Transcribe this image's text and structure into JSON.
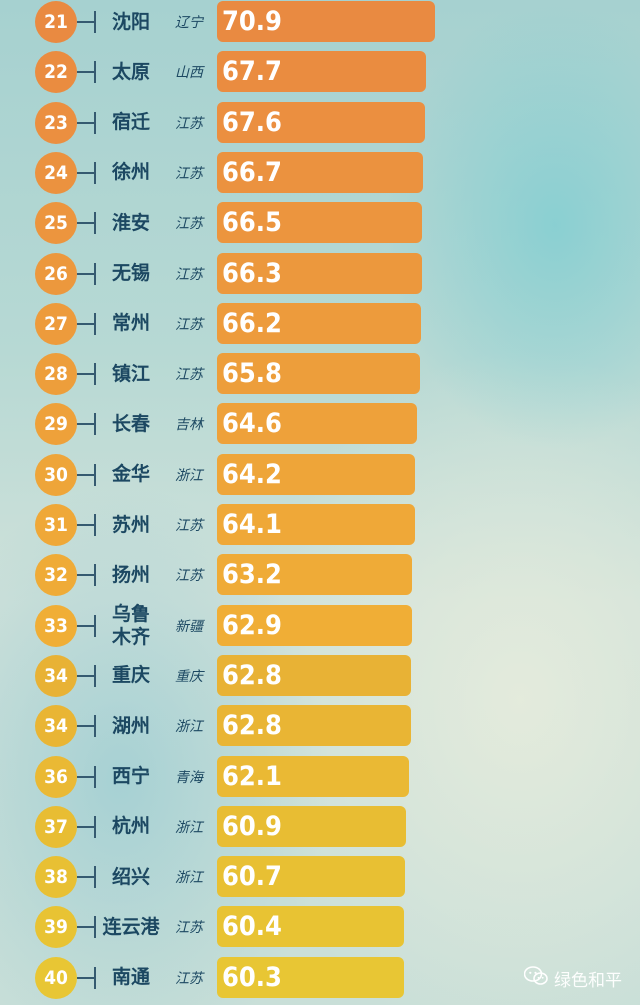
{
  "chart_data": {
    "type": "bar",
    "orientation": "horizontal",
    "rows": [
      {
        "rank": "21",
        "city": "沈阳",
        "province": "辽宁",
        "value": 70.9,
        "label": "70.9",
        "color": "#e98a41"
      },
      {
        "rank": "22",
        "city": "太原",
        "province": "山西",
        "value": 67.7,
        "label": "67.7",
        "color": "#ea8c40"
      },
      {
        "rank": "23",
        "city": "宿迁",
        "province": "江苏",
        "value": 67.6,
        "label": "67.6",
        "color": "#eb8f40"
      },
      {
        "rank": "24",
        "city": "徐州",
        "province": "江苏",
        "value": 66.7,
        "label": "66.7",
        "color": "#eb923f"
      },
      {
        "rank": "25",
        "city": "淮安",
        "province": "江苏",
        "value": 66.5,
        "label": "66.5",
        "color": "#ec953e"
      },
      {
        "rank": "26",
        "city": "无锡",
        "province": "江苏",
        "value": 66.3,
        "label": "66.3",
        "color": "#ec983d"
      },
      {
        "rank": "27",
        "city": "常州",
        "province": "江苏",
        "value": 66.2,
        "label": "66.2",
        "color": "#ed9b3c"
      },
      {
        "rank": "28",
        "city": "镇江",
        "province": "江苏",
        "value": 65.8,
        "label": "65.8",
        "color": "#ed9e3b"
      },
      {
        "rank": "29",
        "city": "长春",
        "province": "吉林",
        "value": 64.6,
        "label": "64.6",
        "color": "#eea13a"
      },
      {
        "rank": "30",
        "city": "金华",
        "province": "浙江",
        "value": 64.2,
        "label": "64.2",
        "color": "#eea539"
      },
      {
        "rank": "31",
        "city": "苏州",
        "province": "江苏",
        "value": 64.1,
        "label": "64.1",
        "color": "#efa838"
      },
      {
        "rank": "32",
        "city": "扬州",
        "province": "江苏",
        "value": 63.2,
        "label": "63.2",
        "color": "#efab37"
      },
      {
        "rank": "33",
        "city": "乌鲁木齐",
        "city_lines": [
          "乌鲁",
          "木齐"
        ],
        "province": "新疆",
        "value": 62.9,
        "label": "62.9",
        "color": "#f0ae36"
      },
      {
        "rank": "34",
        "city": "重庆",
        "province": "重庆",
        "value": 62.8,
        "label": "62.8",
        "color": "#e8b235"
      },
      {
        "rank": "34",
        "city": "湖州",
        "province": "浙江",
        "value": 62.8,
        "label": "62.8",
        "color": "#e9b534"
      },
      {
        "rank": "36",
        "city": "西宁",
        "province": "青海",
        "value": 62.1,
        "label": "62.1",
        "color": "#eab934"
      },
      {
        "rank": "37",
        "city": "杭州",
        "province": "浙江",
        "value": 60.9,
        "label": "60.9",
        "color": "#e8bd33"
      },
      {
        "rank": "38",
        "city": "绍兴",
        "province": "浙江",
        "value": 60.7,
        "label": "60.7",
        "color": "#e8c033"
      },
      {
        "rank": "39",
        "city": "连云港",
        "province": "江苏",
        "value": 60.4,
        "label": "60.4",
        "color": "#e8c333"
      },
      {
        "rank": "40",
        "city": "南通",
        "province": "江苏",
        "value": 60.3,
        "label": "60.3",
        "color": "#e8c634"
      }
    ]
  },
  "watermark": {
    "icon": "wechat-icon",
    "text": "绿色和平"
  }
}
